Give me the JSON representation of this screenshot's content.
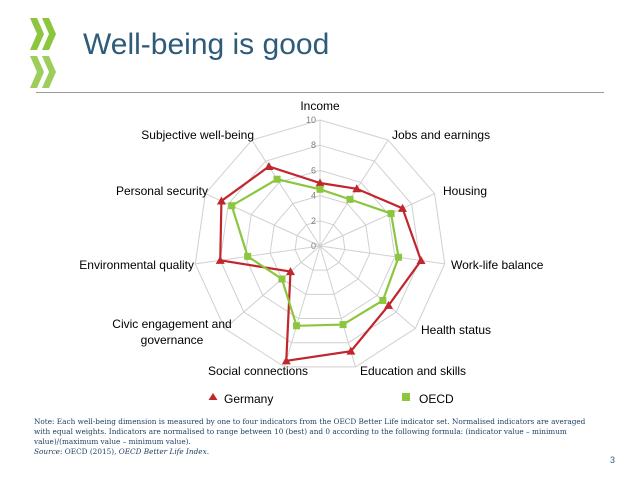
{
  "slide": {
    "title": "Well-being is good",
    "page_number": "3",
    "note_prefix": "Note: Each well-being dimension is measured by one to four indicators from the OECD Better Life indicator set. Normalised indicators are averaged with equal weights. Indicators are normalised to range between 10 (best) and 0 according to the following formula: (indicator value – minimum value)/(maximum value – minimum value).",
    "source_label": "Source",
    "source_text": ": OECD (2015), ",
    "source_title": "OECD Better Life Index",
    "source_end": "."
  },
  "colors": {
    "title": "#2f5b7a",
    "germany": "#c0272d",
    "oecd": "#8cc63f",
    "grid": "#d0d0d0",
    "logo": "#8cc63f"
  },
  "chart_data": {
    "type": "radar",
    "title": "",
    "rlim": [
      0,
      10
    ],
    "rticks": [
      0,
      2,
      4,
      6,
      8,
      10
    ],
    "categories": [
      "Income",
      "Jobs and earnings",
      "Housing",
      "Work-life balance",
      "Health status",
      "Education and skills",
      "Social connections",
      "Civic engagement and governance",
      "Environmental quality",
      "Personal security",
      "Subjective well-being"
    ],
    "series": [
      {
        "name": "Germany",
        "marker": "triangle",
        "values": [
          5.0,
          5.4,
          7.2,
          8.1,
          7.2,
          8.7,
          9.5,
          3.1,
          8.0,
          8.6,
          7.5
        ]
      },
      {
        "name": "OECD",
        "marker": "square",
        "values": [
          4.5,
          4.4,
          6.2,
          6.3,
          6.6,
          6.5,
          6.6,
          4.0,
          5.8,
          7.7,
          6.3
        ]
      }
    ],
    "legend": "bottom"
  }
}
